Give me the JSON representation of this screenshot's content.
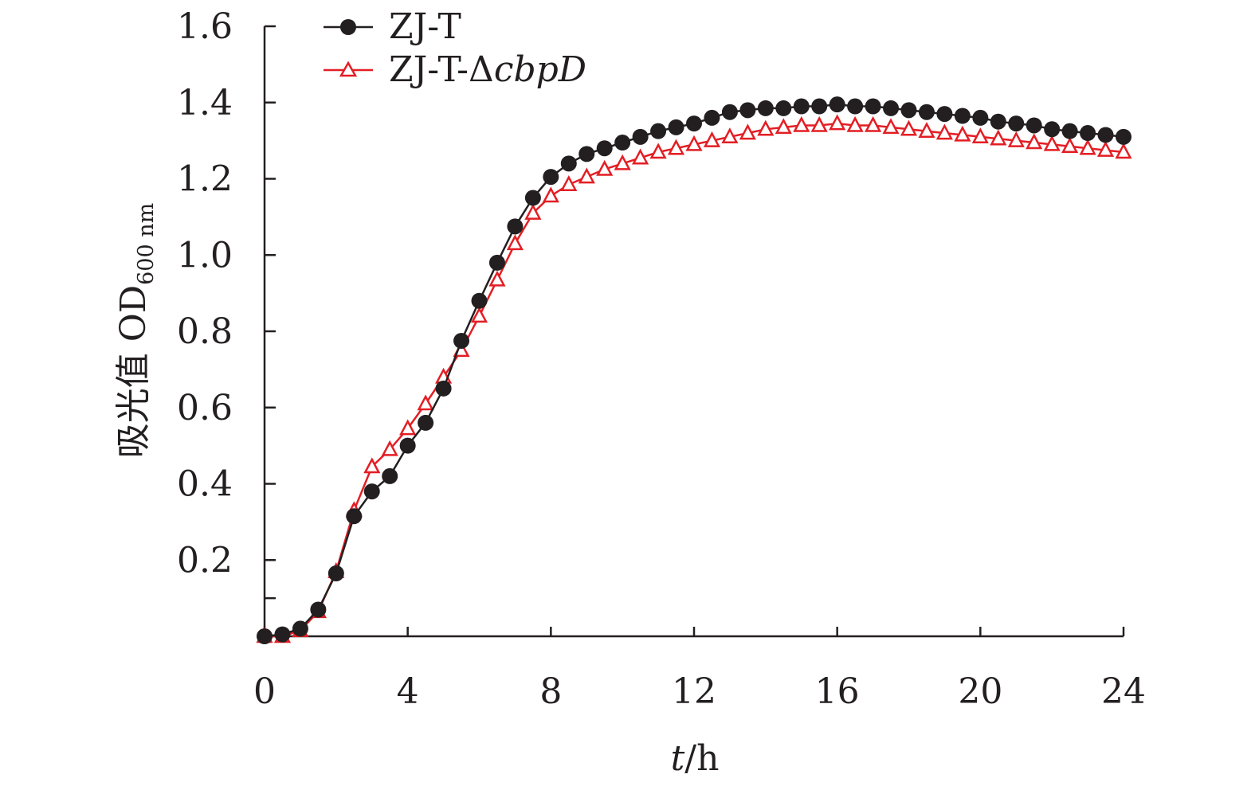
{
  "chart_data": {
    "type": "line",
    "title": "",
    "xlabel": "t/h",
    "xlabel_italic": "t",
    "xlabel_rest": "/h",
    "ylabel": "吸光值 OD600 nm",
    "ylabel_main": "吸光值 OD",
    "ylabel_sub": "600 nm",
    "xlim": [
      0,
      24
    ],
    "ylim": [
      0,
      1.6
    ],
    "x_ticks": [
      0,
      4,
      8,
      12,
      16,
      20,
      24
    ],
    "x_tick_labels": [
      "0",
      "4",
      "8",
      "12",
      "16",
      "20",
      "24"
    ],
    "y_ticks": [
      0.2,
      0.4,
      0.6,
      0.8,
      1.0,
      1.2,
      1.4,
      1.6
    ],
    "y_tick_labels": [
      "0.2",
      "0.4",
      "0.6",
      "0.8",
      "1.0",
      "1.2",
      "1.4",
      "1.6"
    ],
    "legend_position": "top-left",
    "x": [
      0,
      0.5,
      1,
      1.5,
      2,
      2.5,
      3,
      3.5,
      4,
      4.5,
      5,
      5.5,
      6,
      6.5,
      7,
      7.5,
      8,
      8.5,
      9,
      9.5,
      10,
      10.5,
      11,
      11.5,
      12,
      12.5,
      13,
      13.5,
      14,
      14.5,
      15,
      15.5,
      16,
      16.5,
      17,
      17.5,
      18,
      18.5,
      19,
      19.5,
      20,
      20.5,
      21,
      21.5,
      22,
      22.5,
      23,
      23.5,
      24
    ],
    "series": [
      {
        "name": "ZJ-T",
        "legend_label": "ZJ-T",
        "marker": "circle",
        "color": "#231f20",
        "values": [
          0.0,
          0.005,
          0.02,
          0.07,
          0.165,
          0.315,
          0.38,
          0.42,
          0.5,
          0.56,
          0.65,
          0.775,
          0.88,
          0.98,
          1.075,
          1.15,
          1.205,
          1.24,
          1.265,
          1.28,
          1.295,
          1.31,
          1.325,
          1.335,
          1.345,
          1.36,
          1.375,
          1.38,
          1.385,
          1.385,
          1.39,
          1.39,
          1.395,
          1.39,
          1.39,
          1.385,
          1.38,
          1.375,
          1.37,
          1.365,
          1.36,
          1.35,
          1.345,
          1.34,
          1.33,
          1.325,
          1.32,
          1.315,
          1.31
        ]
      },
      {
        "name": "ZJ-T-ΔcbpD",
        "legend_label_prefix": "ZJ-T-Δ",
        "legend_label_italic": "cbpD",
        "marker": "triangle",
        "color": "#e31e24",
        "values": [
          0.0,
          0.0,
          0.015,
          0.065,
          0.17,
          0.33,
          0.445,
          0.49,
          0.545,
          0.61,
          0.68,
          0.75,
          0.84,
          0.935,
          1.03,
          1.11,
          1.155,
          1.185,
          1.205,
          1.225,
          1.24,
          1.255,
          1.27,
          1.28,
          1.29,
          1.3,
          1.31,
          1.32,
          1.33,
          1.335,
          1.34,
          1.34,
          1.345,
          1.34,
          1.34,
          1.335,
          1.33,
          1.325,
          1.32,
          1.315,
          1.31,
          1.305,
          1.3,
          1.295,
          1.29,
          1.285,
          1.28,
          1.275,
          1.27
        ]
      }
    ]
  }
}
